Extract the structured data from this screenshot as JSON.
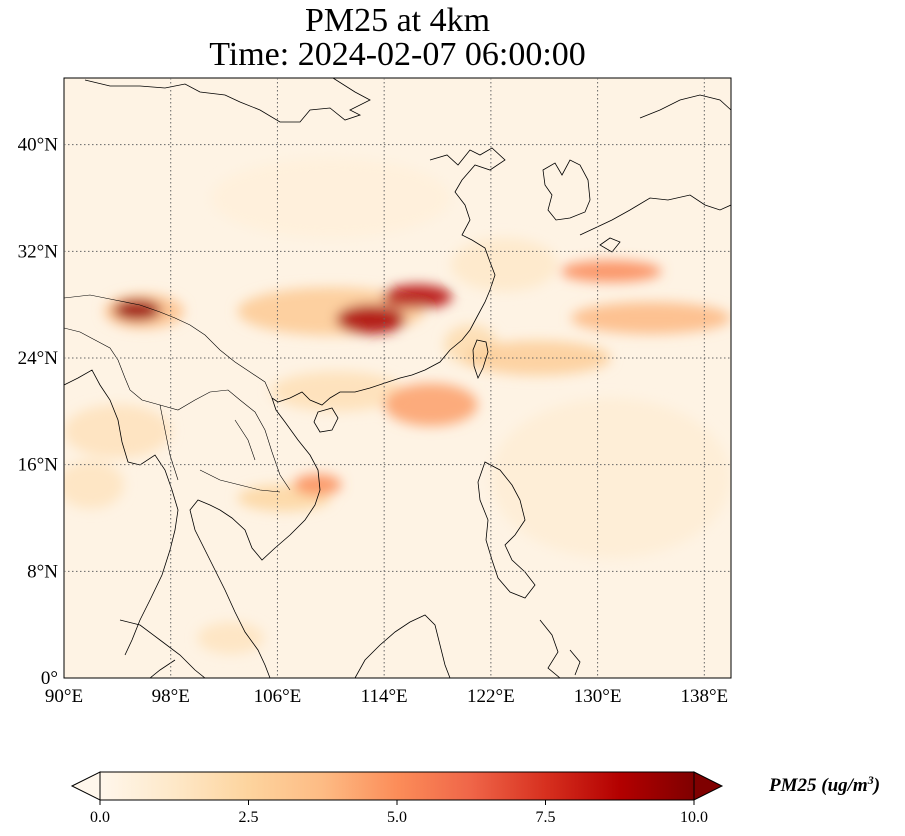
{
  "title": {
    "line1": "PM25 at 4km",
    "line2": "Time: 2024-02-07 06:00:00"
  },
  "map": {
    "extent": {
      "lon": [
        90,
        140
      ],
      "lat": [
        0,
        45
      ]
    },
    "lon_ticks": [
      {
        "value": 90,
        "label": "90°E"
      },
      {
        "value": 98,
        "label": "98°E"
      },
      {
        "value": 106,
        "label": "106°E"
      },
      {
        "value": 114,
        "label": "114°E"
      },
      {
        "value": 122,
        "label": "122°E"
      },
      {
        "value": 130,
        "label": "130°E"
      },
      {
        "value": 138,
        "label": "138°E"
      }
    ],
    "lat_ticks": [
      {
        "value": 0,
        "label": "0°"
      },
      {
        "value": 8,
        "label": "8°N"
      },
      {
        "value": 16,
        "label": "16°N"
      },
      {
        "value": 24,
        "label": "24°N"
      },
      {
        "value": 32,
        "label": "32°N"
      },
      {
        "value": 40,
        "label": "40°N"
      }
    ],
    "gridlines": true,
    "colormap": "OrRd",
    "plumes": [
      {
        "name": "central-china",
        "lon": 113.0,
        "lat": 26.9,
        "lon_radius": 2.6,
        "lat_radius": 1.1,
        "value": 9.0
      },
      {
        "name": "central-china-east",
        "lon": 116.5,
        "lat": 28.6,
        "lon_radius": 2.6,
        "lat_radius": 0.9,
        "value": 8.8
      },
      {
        "name": "central-china-band",
        "lon": 110.0,
        "lat": 27.5,
        "lon_radius": 7.0,
        "lat_radius": 1.8,
        "value": 3.0
      },
      {
        "name": "himalaya",
        "lon": 95.5,
        "lat": 27.6,
        "lon_radius": 1.8,
        "lat_radius": 0.8,
        "value": 9.5
      },
      {
        "name": "himalaya-halo",
        "lon": 96.0,
        "lat": 27.5,
        "lon_radius": 3.0,
        "lat_radius": 1.3,
        "value": 3.5
      },
      {
        "name": "japan-south",
        "lon": 131.0,
        "lat": 30.5,
        "lon_radius": 3.8,
        "lat_radius": 0.8,
        "value": 5.2
      },
      {
        "name": "pacific-band",
        "lon": 134.0,
        "lat": 27.0,
        "lon_radius": 6.0,
        "lat_radius": 1.2,
        "value": 3.8
      },
      {
        "name": "south-china-sea-plume",
        "lon": 117.5,
        "lat": 20.5,
        "lon_radius": 3.5,
        "lat_radius": 1.6,
        "value": 4.5
      },
      {
        "name": "ocean-band",
        "lon": 125.5,
        "lat": 24.0,
        "lon_radius": 5.5,
        "lat_radius": 1.3,
        "value": 2.8
      },
      {
        "name": "vietnam-coast",
        "lon": 109.0,
        "lat": 14.5,
        "lon_radius": 1.8,
        "lat_radius": 0.8,
        "value": 5.0
      },
      {
        "name": "vietnam-band",
        "lon": 106.5,
        "lat": 13.5,
        "lon_radius": 3.5,
        "lat_radius": 1.0,
        "value": 2.4
      },
      {
        "name": "hainan-ocean",
        "lon": 110.5,
        "lat": 21.5,
        "lon_radius": 5.0,
        "lat_radius": 1.5,
        "value": 1.8
      },
      {
        "name": "myanmar",
        "lon": 94.0,
        "lat": 18.5,
        "lon_radius": 4.0,
        "lat_radius": 2.0,
        "value": 1.6
      },
      {
        "name": "bay-of-bengal",
        "lon": 92.0,
        "lat": 14.5,
        "lon_radius": 2.5,
        "lat_radius": 1.8,
        "value": 1.5
      },
      {
        "name": "taiwan-strait",
        "lon": 120.5,
        "lat": 25.0,
        "lon_radius": 2.0,
        "lat_radius": 1.5,
        "value": 2.0
      },
      {
        "name": "malaysia",
        "lon": 102.5,
        "lat": 3.0,
        "lon_radius": 2.5,
        "lat_radius": 1.2,
        "value": 1.5
      },
      {
        "name": "yellow-sea",
        "lon": 123.0,
        "lat": 31.0,
        "lon_radius": 4.0,
        "lat_radius": 2.0,
        "value": 1.2
      },
      {
        "name": "north-china",
        "lon": 110.0,
        "lat": 36.0,
        "lon_radius": 9.0,
        "lat_radius": 3.0,
        "value": 0.6
      },
      {
        "name": "south-pacific",
        "lon": 131.0,
        "lat": 15.0,
        "lon_radius": 9.0,
        "lat_radius": 6.0,
        "value": 0.8
      }
    ]
  },
  "colorbar": {
    "label_main": "PM25 (ug/m",
    "label_sup": "3",
    "label_end": ")",
    "vmin": 0.0,
    "vmax": 10.0,
    "extend": "both",
    "ticks": [
      {
        "value": 0.0,
        "label": "0.0"
      },
      {
        "value": 2.5,
        "label": "2.5"
      },
      {
        "value": 5.0,
        "label": "5.0"
      },
      {
        "value": 7.5,
        "label": "7.5"
      },
      {
        "value": 10.0,
        "label": "10.0"
      }
    ],
    "stops": [
      "#fff7ec",
      "#fee8c8",
      "#fdd49e",
      "#fdbb84",
      "#fc8d59",
      "#ef6548",
      "#d7301f",
      "#b30000",
      "#7f0000"
    ]
  }
}
